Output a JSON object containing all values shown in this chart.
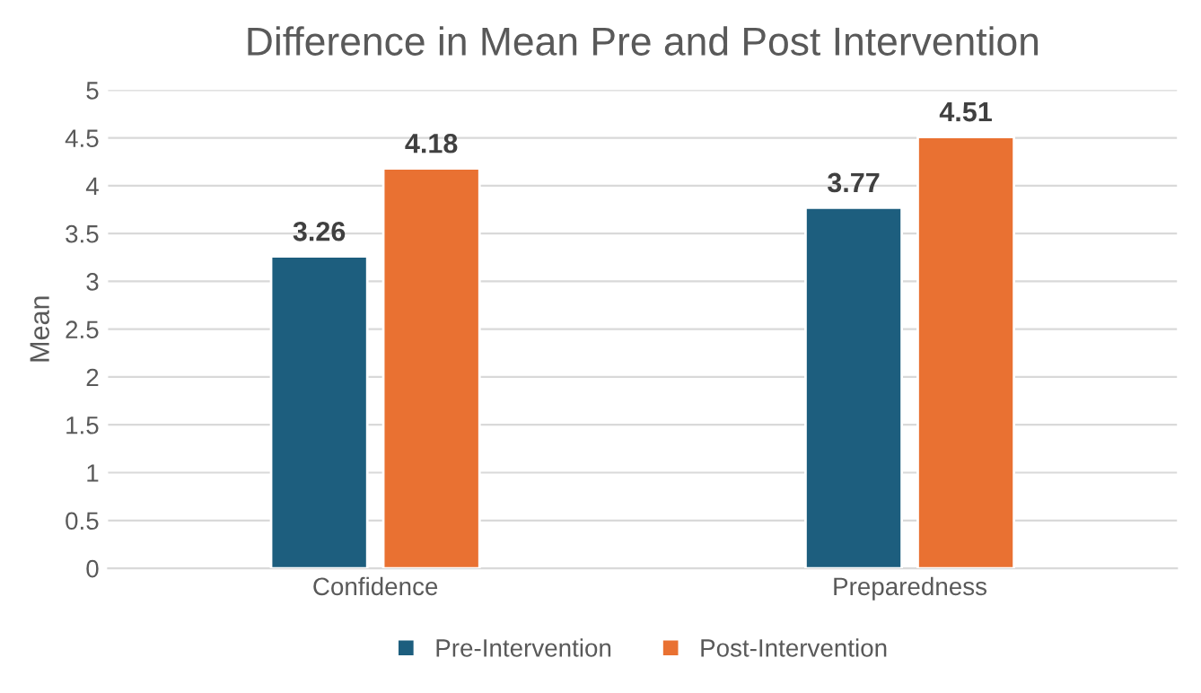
{
  "chart_data": {
    "type": "bar",
    "title": "Difference in Mean Pre and Post Intervention",
    "ylabel": "Mean",
    "categories": [
      "Confidence",
      "Preparedness"
    ],
    "series": [
      {
        "name": "Pre-Intervention",
        "color": "#1d5e7e",
        "values": [
          3.26,
          3.77
        ]
      },
      {
        "name": "Post-Intervention",
        "color": "#e97132",
        "values": [
          4.18,
          4.51
        ]
      }
    ],
    "ylim": [
      0,
      5
    ],
    "yticks": [
      0,
      0.5,
      1,
      1.5,
      2,
      2.5,
      3,
      3.5,
      4,
      4.5,
      5
    ],
    "grid": "y",
    "legend": "bottom",
    "data_labels": true
  }
}
